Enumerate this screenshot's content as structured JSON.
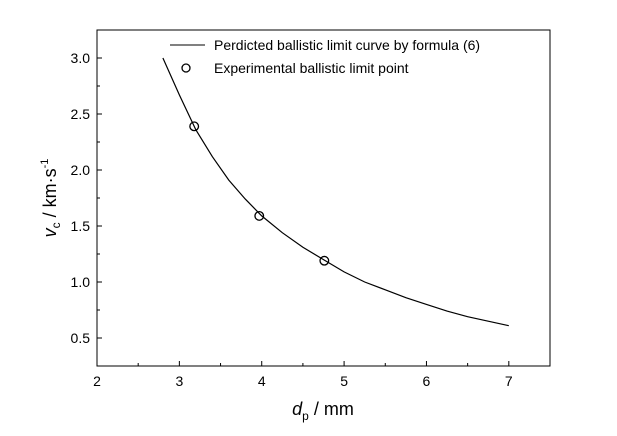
{
  "chart_data": {
    "type": "scatter",
    "xlim": [
      2,
      7.5
    ],
    "ylim": [
      0.25,
      3.25
    ],
    "x_ticks": [
      "2",
      "3",
      "4",
      "5",
      "6",
      "7"
    ],
    "y_ticks": [
      "0.5",
      "1.0",
      "1.5",
      "2.0",
      "2.5",
      "3.0"
    ],
    "x_tick_values": [
      2,
      3,
      4,
      5,
      6,
      7
    ],
    "y_tick_values": [
      0.5,
      1.0,
      1.5,
      2.0,
      2.5,
      3.0
    ],
    "xlabel": {
      "main": "d",
      "sub": "p",
      "rest": " / mm"
    },
    "ylabel": {
      "main": "v",
      "sub": "c",
      "rest": " / km·s",
      "sup": "-1"
    },
    "legend_position": "top-right",
    "series": [
      {
        "name": "Perdicted ballistic limit curve by formula (6)",
        "kind": "line",
        "x": [
          2.8,
          3.0,
          3.2,
          3.4,
          3.6,
          3.8,
          4.0,
          4.25,
          4.5,
          4.75,
          5.0,
          5.25,
          5.5,
          5.75,
          6.0,
          6.25,
          6.5,
          6.75,
          7.0
        ],
        "y": [
          3.0,
          2.67,
          2.36,
          2.12,
          1.91,
          1.74,
          1.59,
          1.44,
          1.31,
          1.2,
          1.09,
          1.0,
          0.93,
          0.86,
          0.8,
          0.74,
          0.69,
          0.65,
          0.61
        ]
      },
      {
        "name": "Experimental ballistic limit point",
        "kind": "marker",
        "x": [
          3.18,
          3.97,
          4.76
        ],
        "y": [
          2.39,
          1.59,
          1.19
        ]
      }
    ]
  }
}
